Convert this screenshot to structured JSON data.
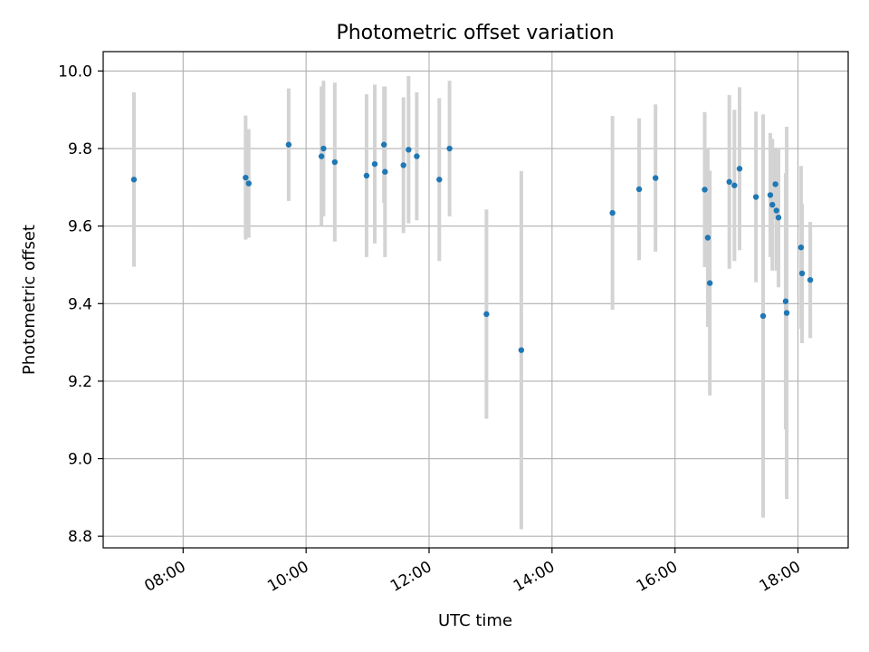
{
  "chart_data": {
    "type": "scatter",
    "title": "Photometric offset variation",
    "xlabel": "UTC time",
    "ylabel": "Photometric offset",
    "x_axis_type": "time",
    "xlim": [
      "06:42",
      "18:49"
    ],
    "ylim": [
      8.77,
      10.05
    ],
    "x_ticks": [
      "08:00",
      "10:00",
      "12:00",
      "14:00",
      "16:00",
      "18:00"
    ],
    "y_ticks": [
      "8.8",
      "9.0",
      "9.2",
      "9.4",
      "9.6",
      "9.8",
      "10.0"
    ],
    "grid": true,
    "legend": "none",
    "x_tick_rotation": "30 degrees",
    "colors": {
      "points": "#1f77b4",
      "error_bars": "#d3d3d3",
      "grid": "#b0b0b0",
      "axes": "#000000"
    },
    "points": [
      {
        "x": "07:12",
        "y": 9.72,
        "err": 0.225
      },
      {
        "x": "09:01",
        "y": 9.725,
        "err": 0.16
      },
      {
        "x": "09:04",
        "y": 9.71,
        "err": 0.14
      },
      {
        "x": "09:43",
        "y": 9.81,
        "err": 0.145
      },
      {
        "x": "10:15",
        "y": 9.78,
        "err": 0.18
      },
      {
        "x": "10:17",
        "y": 9.8,
        "err": 0.175
      },
      {
        "x": "10:28",
        "y": 9.765,
        "err": 0.205
      },
      {
        "x": "10:59",
        "y": 9.73,
        "err": 0.21
      },
      {
        "x": "11:07",
        "y": 9.76,
        "err": 0.205
      },
      {
        "x": "11:16",
        "y": 9.81,
        "err": 0.15
      },
      {
        "x": "11:17",
        "y": 9.74,
        "err": 0.22
      },
      {
        "x": "11:35",
        "y": 9.757,
        "err": 0.175
      },
      {
        "x": "11:40",
        "y": 9.797,
        "err": 0.19
      },
      {
        "x": "11:48",
        "y": 9.78,
        "err": 0.165
      },
      {
        "x": "12:10",
        "y": 9.72,
        "err": 0.21
      },
      {
        "x": "12:20",
        "y": 9.8,
        "err": 0.175
      },
      {
        "x": "12:56",
        "y": 9.373,
        "err": 0.27
      },
      {
        "x": "13:30",
        "y": 9.28,
        "err": 0.462
      },
      {
        "x": "14:59",
        "y": 9.634,
        "err": 0.25
      },
      {
        "x": "15:25",
        "y": 9.695,
        "err": 0.183
      },
      {
        "x": "15:41",
        "y": 9.724,
        "err": 0.19
      },
      {
        "x": "16:29",
        "y": 9.694,
        "err": 0.2
      },
      {
        "x": "16:32",
        "y": 9.57,
        "err": 0.23
      },
      {
        "x": "16:34",
        "y": 9.453,
        "err": 0.29
      },
      {
        "x": "16:53",
        "y": 9.714,
        "err": 0.224
      },
      {
        "x": "16:58",
        "y": 9.705,
        "err": 0.195
      },
      {
        "x": "17:03",
        "y": 9.748,
        "err": 0.21
      },
      {
        "x": "17:19",
        "y": 9.675,
        "err": 0.22
      },
      {
        "x": "17:26",
        "y": 9.368,
        "err": 0.52
      },
      {
        "x": "17:33",
        "y": 9.68,
        "err": 0.16
      },
      {
        "x": "17:35",
        "y": 9.655,
        "err": 0.17
      },
      {
        "x": "17:38",
        "y": 9.708,
        "err": 0.09
      },
      {
        "x": "17:39",
        "y": 9.64,
        "err": 0.155
      },
      {
        "x": "17:41",
        "y": 9.622,
        "err": 0.18
      },
      {
        "x": "17:48",
        "y": 9.406,
        "err": 0.33
      },
      {
        "x": "17:49",
        "y": 9.376,
        "err": 0.48
      },
      {
        "x": "18:03",
        "y": 9.545,
        "err": 0.21
      },
      {
        "x": "18:04",
        "y": 9.478,
        "err": 0.18
      },
      {
        "x": "18:12",
        "y": 9.461,
        "err": 0.15
      }
    ]
  }
}
